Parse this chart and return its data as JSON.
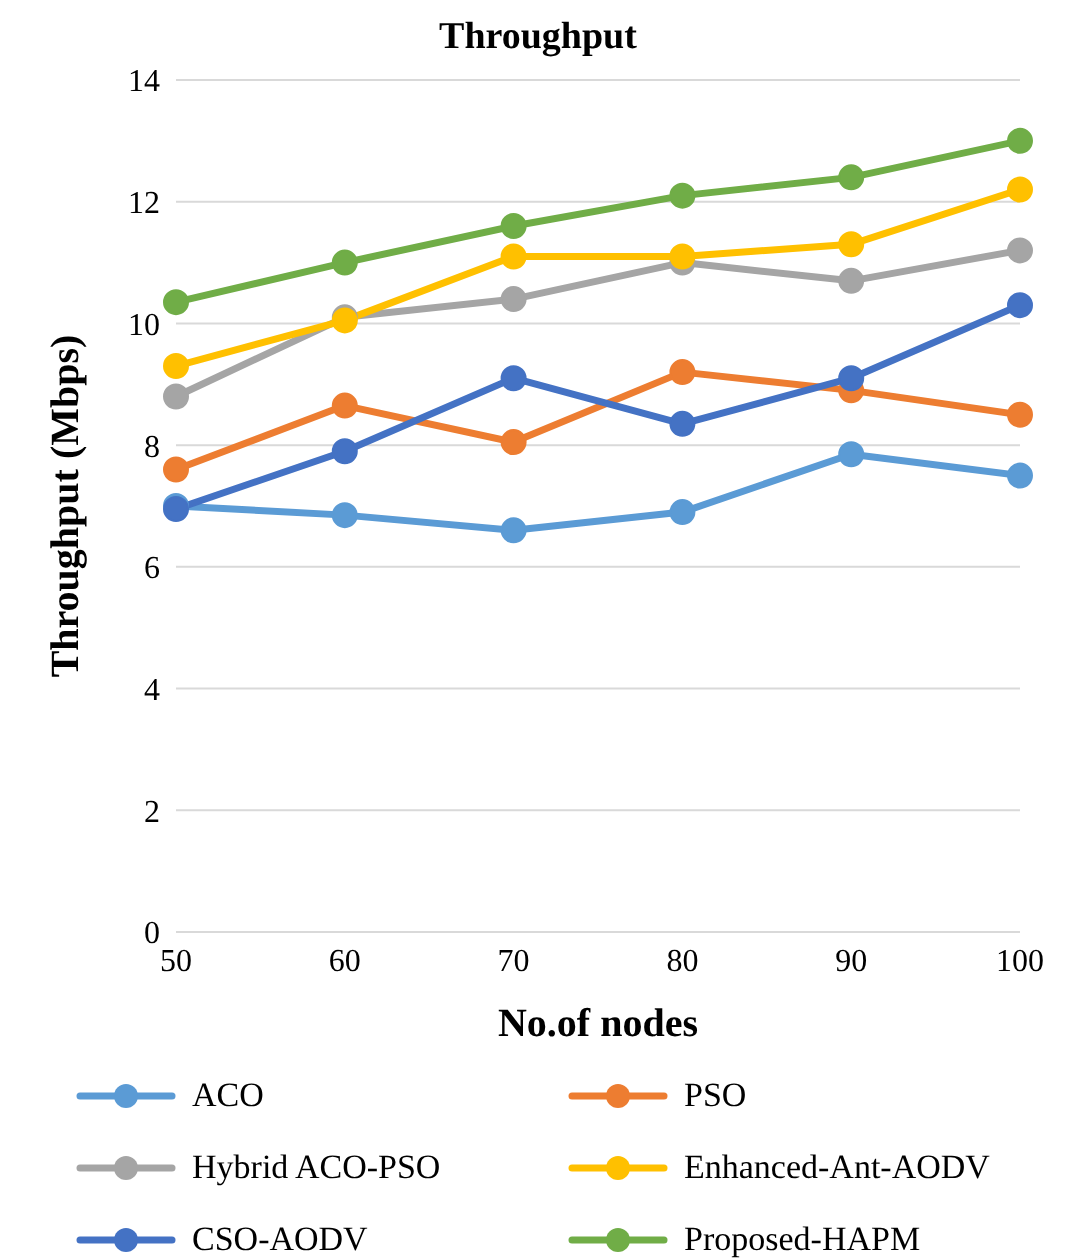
{
  "chart_data": {
    "type": "line",
    "title": "Throughput",
    "xlabel": "No.of nodes",
    "ylabel": "Throughput (Mbps)",
    "categories": [
      "50",
      "60",
      "70",
      "80",
      "90",
      "100"
    ],
    "series": [
      {
        "name": "ACO",
        "color": "#5b9bd5",
        "values": [
          7.0,
          6.85,
          6.6,
          6.9,
          7.85,
          7.5
        ]
      },
      {
        "name": "PSO",
        "color": "#ed7d31",
        "values": [
          7.6,
          8.65,
          8.05,
          9.2,
          8.9,
          8.5
        ]
      },
      {
        "name": "Hybrid ACO-PSO",
        "color": "#a5a5a5",
        "values": [
          8.8,
          10.1,
          10.4,
          11.0,
          10.7,
          11.2
        ]
      },
      {
        "name": "Enhanced-Ant-AODV",
        "color": "#ffc000",
        "values": [
          9.3,
          10.05,
          11.1,
          11.1,
          11.3,
          12.2
        ]
      },
      {
        "name": "CSO-AODV",
        "color": "#4472c4",
        "values": [
          6.95,
          7.9,
          9.1,
          8.35,
          9.1,
          10.3
        ]
      },
      {
        "name": "Proposed-HAPM",
        "color": "#70ad47",
        "values": [
          10.35,
          11.0,
          11.6,
          12.1,
          12.4,
          13.0
        ]
      }
    ],
    "ylim": [
      0,
      14
    ],
    "yticks": [
      0,
      2,
      4,
      6,
      8,
      10,
      12,
      14
    ],
    "grid": "y",
    "legend": "bottom",
    "marker": "circle",
    "line_style": "solid"
  }
}
